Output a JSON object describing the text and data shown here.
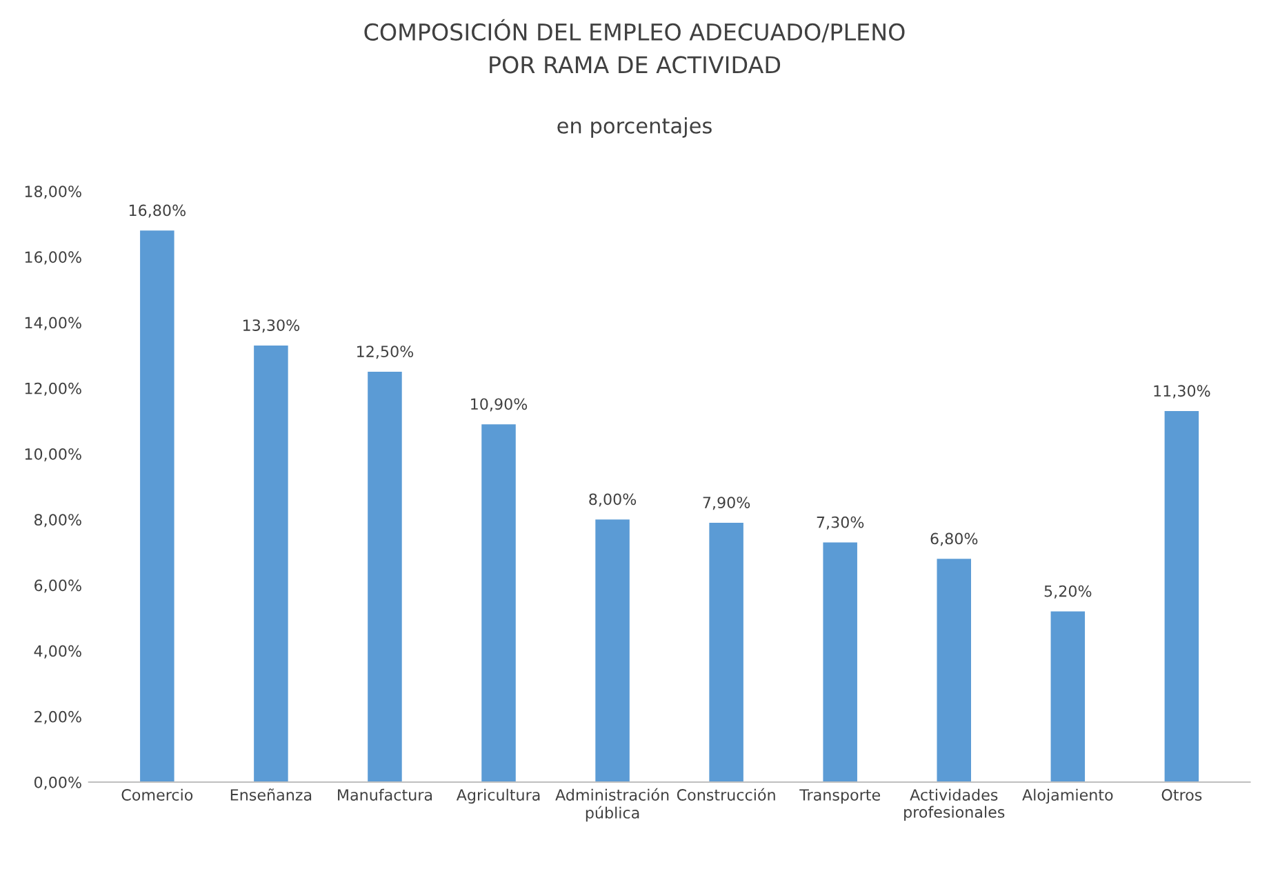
{
  "chart_data": {
    "type": "bar",
    "title": "COMPOSICIÓN DEL EMPLEO ADECUADO/PLENO\nPOR RAMA DE ACTIVIDAD",
    "subtitle": "en porcentajes",
    "categories": [
      "Comercio",
      "Enseñanza",
      "Manufactura",
      "Agricultura",
      "Administración\npública",
      "Construcción",
      "Transporte",
      "Actividades\nprofesionales",
      "Alojamiento",
      "Otros"
    ],
    "values": [
      16.8,
      13.3,
      12.5,
      10.9,
      8.0,
      7.9,
      7.3,
      6.8,
      5.2,
      11.3
    ],
    "value_labels": [
      "16,80%",
      "13,30%",
      "12,50%",
      "10,90%",
      "8,00%",
      "7,90%",
      "7,30%",
      "6,80%",
      "5,20%",
      "11,30%"
    ],
    "color": "#5b9bd5",
    "ylim": [
      0,
      18
    ],
    "yticks": [
      {
        "value": 0,
        "label": "0,00%"
      },
      {
        "value": 2,
        "label": "2,00%"
      },
      {
        "value": 4,
        "label": "4,00%"
      },
      {
        "value": 6,
        "label": "6,00%"
      },
      {
        "value": 8,
        "label": "8,00%"
      },
      {
        "value": 10,
        "label": "10,00%"
      },
      {
        "value": 12,
        "label": "12,00%"
      },
      {
        "value": 14,
        "label": "14,00%"
      },
      {
        "value": 16,
        "label": "16,00%"
      },
      {
        "value": 18,
        "label": "18,00%"
      }
    ],
    "grid": false
  }
}
